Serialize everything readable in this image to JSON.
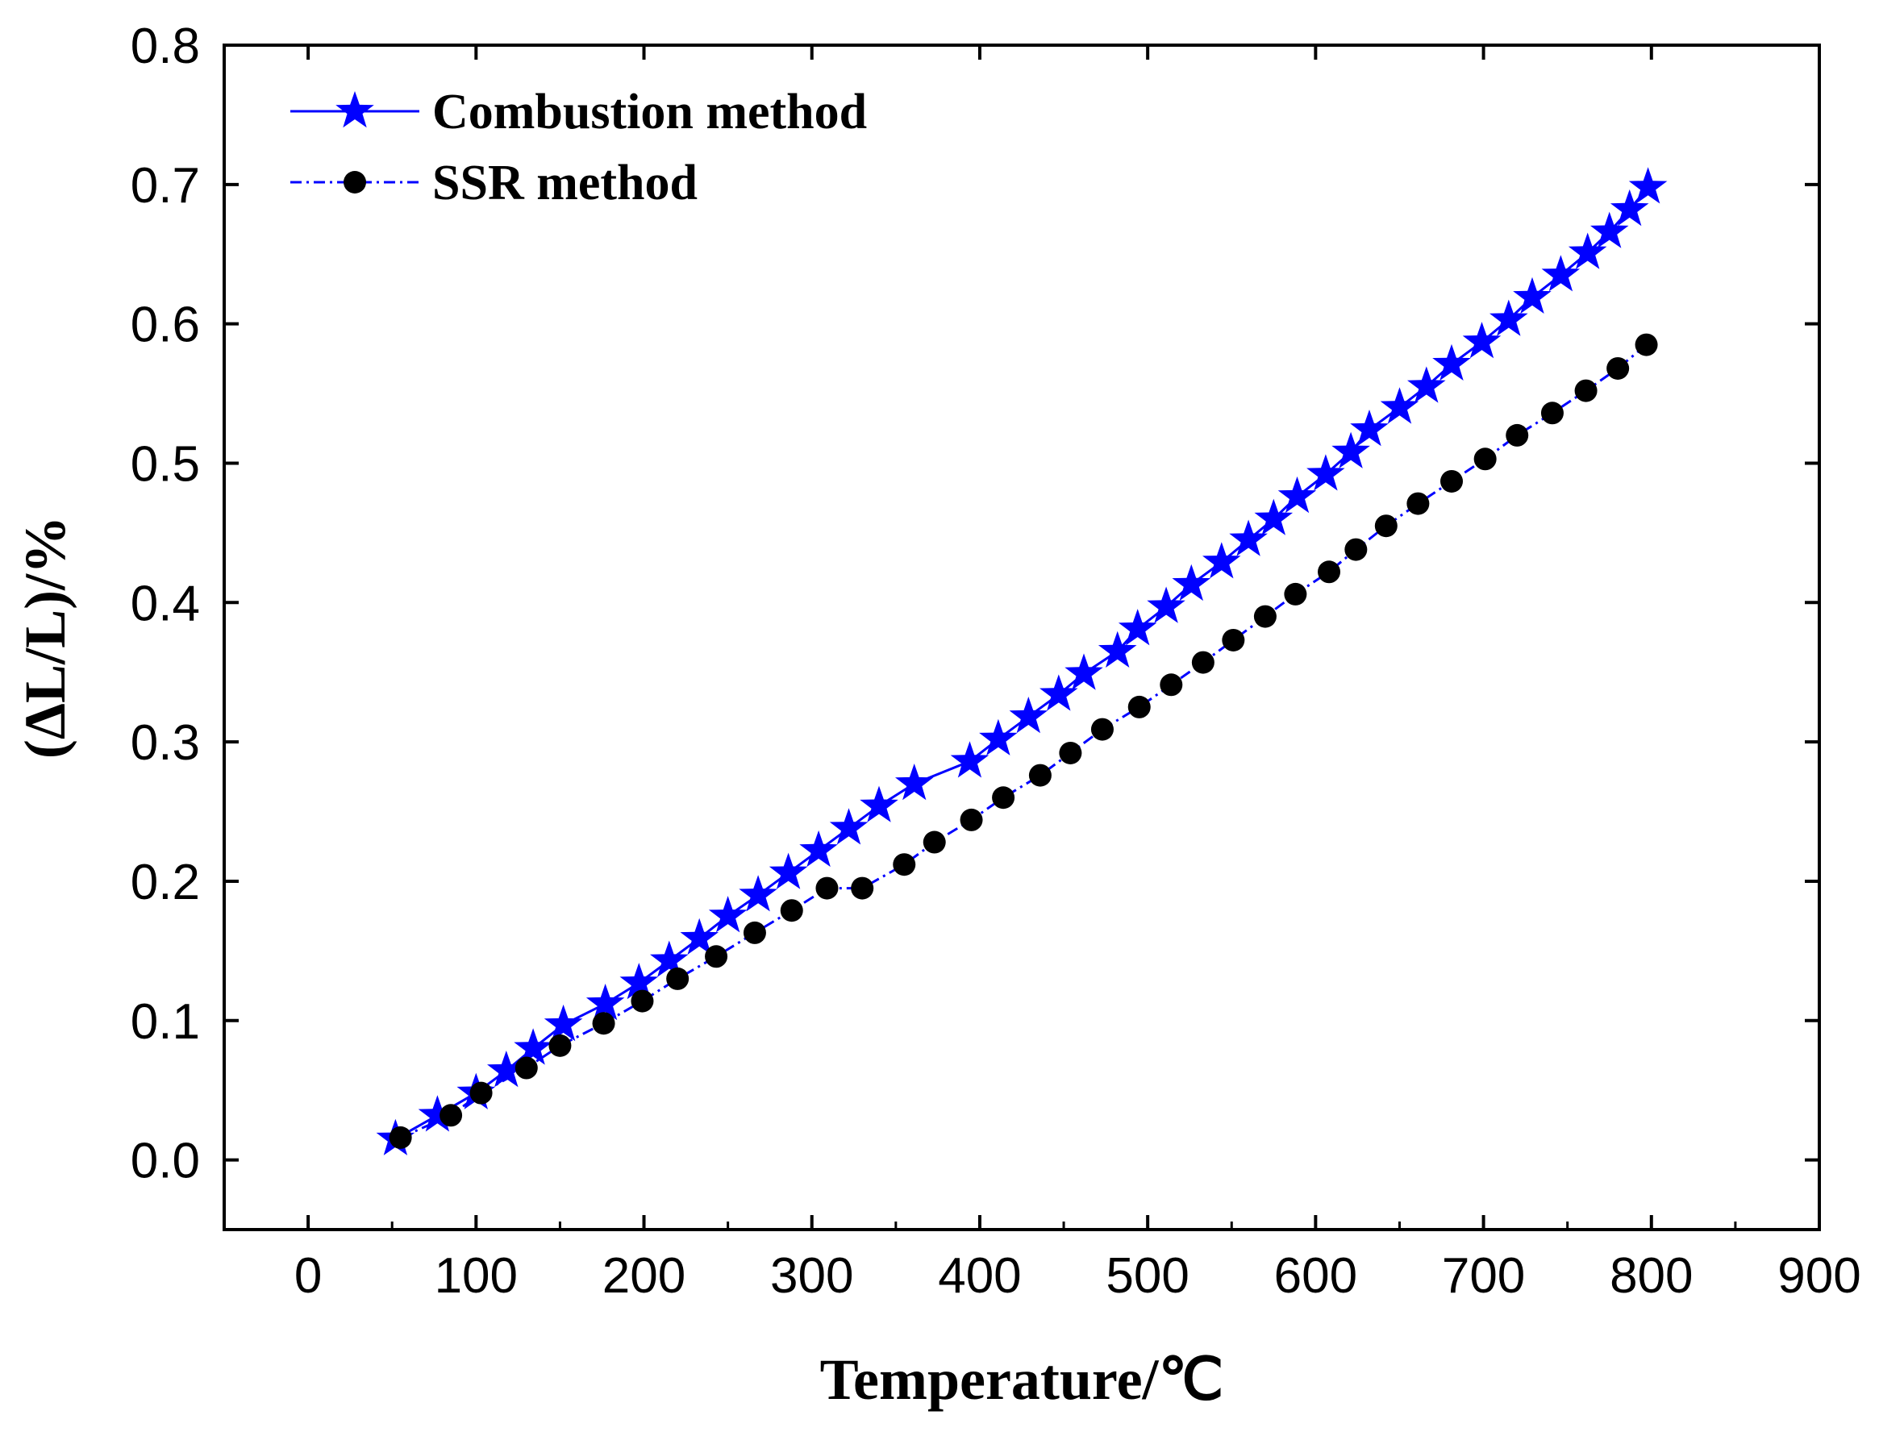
{
  "chart_data": {
    "type": "scatter",
    "title": "",
    "xlabel": "Temperature/℃",
    "ylabel": "(ΔL/L)/%",
    "xlim": [
      -50,
      900
    ],
    "ylim": [
      -0.05,
      0.8
    ],
    "xticks": [
      0,
      100,
      200,
      300,
      400,
      500,
      600,
      700,
      800,
      900
    ],
    "xtick_labels": [
      "0",
      "100",
      "200",
      "300",
      "400",
      "500",
      "600",
      "700",
      "800",
      "900"
    ],
    "yticks": [
      0.0,
      0.1,
      0.2,
      0.3,
      0.4,
      0.5,
      0.6,
      0.7,
      0.8
    ],
    "ytick_labels": [
      "0.0",
      "0.1",
      "0.2",
      "0.3",
      "0.4",
      "0.5",
      "0.6",
      "0.7",
      "0.8"
    ],
    "grid": false,
    "legend_position": "top-left",
    "series": [
      {
        "name": "Combustion method",
        "color": "#0000ff",
        "marker": "star",
        "x": [
          52,
          77,
          100,
          118,
          134,
          152,
          177,
          197,
          215,
          233,
          250,
          268,
          286,
          304,
          322,
          340,
          361,
          394,
          411,
          429,
          447,
          462,
          482,
          494,
          511,
          526,
          544,
          560,
          575,
          589,
          606,
          621,
          632,
          650,
          666,
          681,
          699,
          715,
          729,
          746,
          762,
          775,
          787,
          798
        ],
        "y": [
          0.015,
          0.032,
          0.048,
          0.064,
          0.08,
          0.097,
          0.112,
          0.127,
          0.143,
          0.159,
          0.175,
          0.19,
          0.206,
          0.222,
          0.238,
          0.254,
          0.27,
          0.286,
          0.302,
          0.318,
          0.334,
          0.349,
          0.365,
          0.381,
          0.397,
          0.413,
          0.429,
          0.445,
          0.46,
          0.476,
          0.492,
          0.508,
          0.524,
          0.54,
          0.555,
          0.571,
          0.587,
          0.603,
          0.619,
          0.635,
          0.651,
          0.666,
          0.682,
          0.698
        ]
      },
      {
        "name": "SSR method",
        "color": "#000000",
        "marker": "circle",
        "x": [
          55,
          85,
          103,
          130,
          150,
          176,
          199,
          220,
          243,
          266,
          288,
          309,
          330,
          355,
          373,
          395,
          414,
          436,
          454,
          473,
          495,
          514,
          533,
          551,
          570,
          588,
          608,
          624,
          642,
          661,
          681,
          701,
          720,
          741,
          761,
          780,
          797
        ],
        "y": [
          0.016,
          0.032,
          0.048,
          0.066,
          0.082,
          0.098,
          0.114,
          0.13,
          0.146,
          0.163,
          0.179,
          0.195,
          0.195,
          0.212,
          0.228,
          0.244,
          0.26,
          0.276,
          0.292,
          0.309,
          0.325,
          0.341,
          0.357,
          0.373,
          0.39,
          0.406,
          0.422,
          0.438,
          0.455,
          0.471,
          0.487,
          0.503,
          0.52,
          0.536,
          0.552,
          0.568,
          0.585
        ]
      }
    ]
  }
}
